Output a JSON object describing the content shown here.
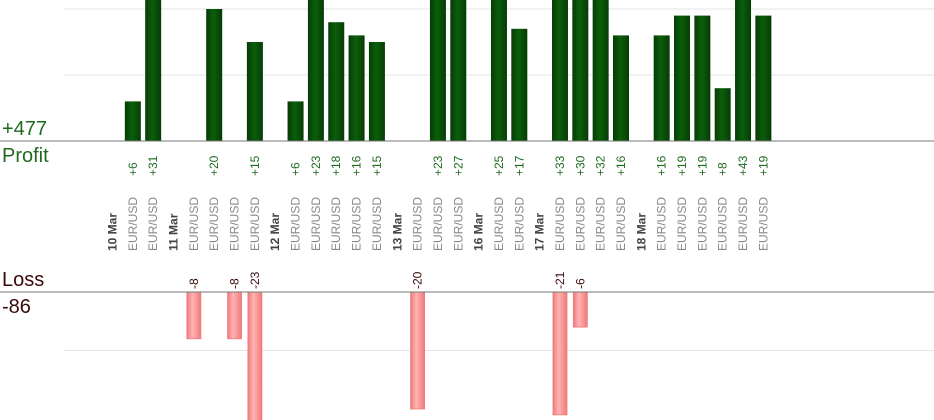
{
  "summary": {
    "profit_total": "+477",
    "profit_label": "Profit",
    "loss_label": "Loss",
    "loss_total": "-86"
  },
  "colors": {
    "profit_bar": "#0b5e0b",
    "profit_bar_dark": "#063c06",
    "profit_text": "#1f6a1f",
    "loss_bar": "#ffb3b3",
    "loss_bar_edge": "#f07a7a",
    "loss_text": "#3a0a0a",
    "date_text": "#444444",
    "pair_text": "#888888",
    "axis": "#777777",
    "grid": "#e6e6e6"
  },
  "chart_data": {
    "type": "bar",
    "categories": [
      "10 Mar",
      "EUR/USD",
      "EUR/USD",
      "11 Mar",
      "EUR/USD",
      "EUR/USD",
      "EUR/USD",
      "EUR/USD",
      "12 Mar",
      "EUR/USD",
      "EUR/USD",
      "EUR/USD",
      "EUR/USD",
      "EUR/USD",
      "13 Mar",
      "EUR/USD",
      "EUR/USD",
      "EUR/USD",
      "16 Mar",
      "EUR/USD",
      "EUR/USD",
      "17 Mar",
      "EUR/USD",
      "EUR/USD",
      "EUR/USD",
      "EUR/USD",
      "18 Mar",
      "EUR/USD",
      "EUR/USD",
      "EUR/USD",
      "EUR/USD",
      "EUR/USD",
      "EUR/USD"
    ],
    "series": [
      {
        "values": [
          null,
          6,
          31,
          null,
          null,
          20,
          null,
          15,
          null,
          6,
          23,
          18,
          16,
          15,
          null,
          null,
          23,
          27,
          null,
          25,
          17,
          null,
          33,
          30,
          32,
          16,
          null,
          16,
          19,
          19,
          8,
          43,
          19
        ]
      },
      {
        "values": [
          null,
          null,
          null,
          null,
          -8,
          null,
          -8,
          -23,
          null,
          null,
          null,
          null,
          null,
          null,
          null,
          -20,
          null,
          null,
          null,
          null,
          null,
          null,
          -21,
          -6,
          null,
          null,
          null,
          null,
          null,
          null,
          null,
          null,
          null
        ]
      }
    ],
    "profit_labels": [
      null,
      "+6",
      "+31",
      null,
      null,
      "+20",
      null,
      "+15",
      null,
      "+6",
      "+23",
      "+18",
      "+16",
      "+15",
      null,
      null,
      "+23",
      "+27",
      null,
      "+25",
      "+17",
      null,
      "+33",
      "+30",
      "+32",
      "+16",
      null,
      "+16",
      "+19",
      "+19",
      "+8",
      "+43",
      "+19"
    ],
    "loss_labels": [
      null,
      null,
      null,
      null,
      "-8",
      null,
      "-8",
      "-23",
      null,
      null,
      null,
      null,
      null,
      null,
      null,
      "-20",
      null,
      null,
      null,
      null,
      null,
      null,
      "-21",
      "-6",
      null,
      null,
      null,
      null,
      null,
      null,
      null,
      null,
      null
    ]
  }
}
